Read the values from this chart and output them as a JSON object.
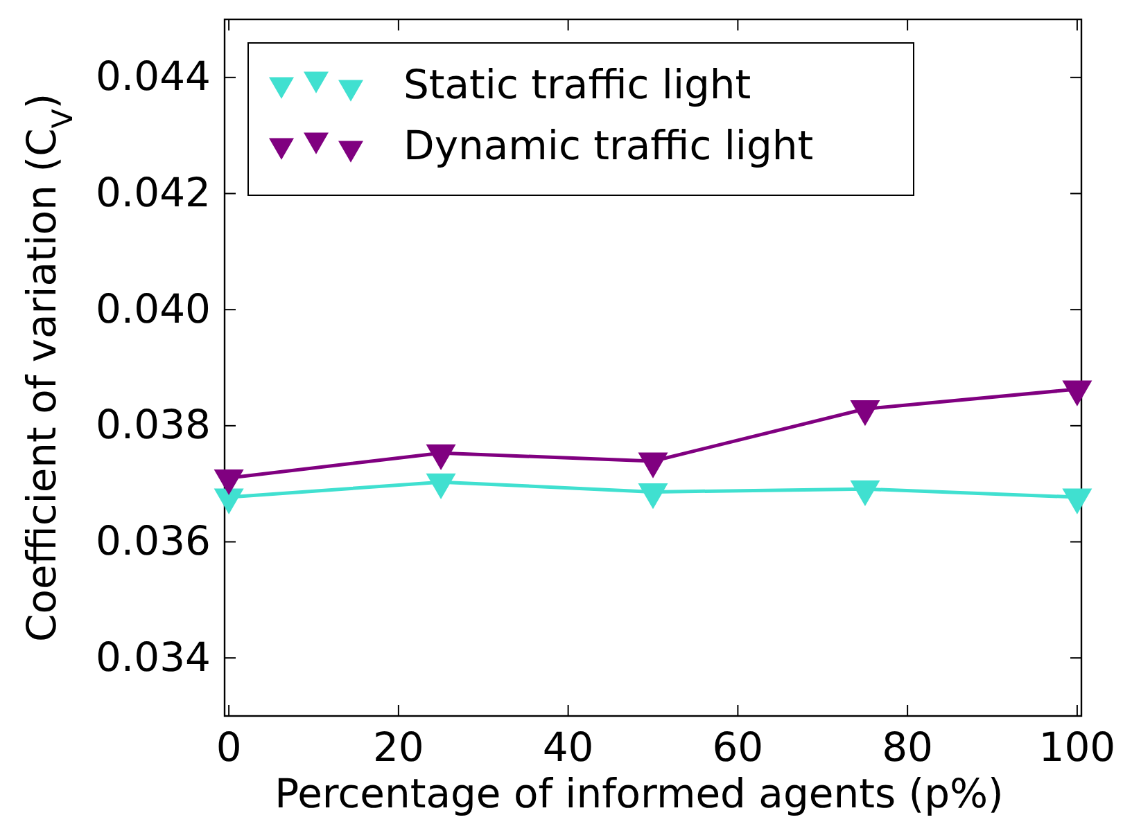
{
  "chart_data": {
    "type": "line",
    "xlabel": "Percentage of informed agents (p%)",
    "ylabel": "Coefficient of variation (C$_{V}$)",
    "x": [
      0,
      25,
      50,
      75,
      100
    ],
    "series": [
      {
        "name": "Static traffic light",
        "color": "#40e0d0",
        "values": [
          0.03677,
          0.03703,
          0.03686,
          0.03691,
          0.03677
        ]
      },
      {
        "name": "Dynamic traffic light",
        "color": "#800080",
        "values": [
          0.0371,
          0.03753,
          0.03739,
          0.03829,
          0.03863
        ]
      }
    ],
    "xlim": [
      -0.5,
      100.5
    ],
    "xticks": [
      0,
      20,
      40,
      60,
      80,
      100
    ],
    "ylim": [
      0.033,
      0.045
    ],
    "yticks": [
      {
        "value": 0.034,
        "label": "0.034"
      },
      {
        "value": 0.036,
        "label": "0.036"
      },
      {
        "value": 0.038,
        "label": "0.038"
      },
      {
        "value": 0.04,
        "label": "0.040"
      },
      {
        "value": 0.042,
        "label": "0.042"
      },
      {
        "value": 0.044,
        "label": "0.044"
      }
    ],
    "marker": "triangle",
    "legend": "top left",
    "grid": false
  }
}
